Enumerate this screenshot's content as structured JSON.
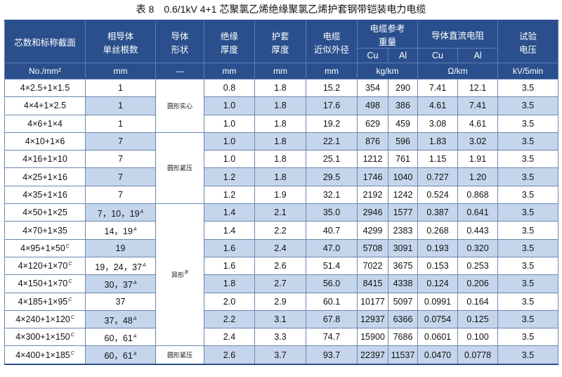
{
  "title": "表 8　0.6/1kV 4+1 芯聚氯乙烯绝缘聚氯乙烯护套钢带铠装电力电缆",
  "headers": {
    "spec": "芯数和标称截面",
    "strands": [
      "相导体",
      "单丝根数"
    ],
    "shape": [
      "导体",
      "形状"
    ],
    "insulation": [
      "绝缘",
      "厚度"
    ],
    "sheath": [
      "护套",
      "厚度"
    ],
    "diameter": [
      "电缆",
      "近似外径"
    ],
    "weight": [
      "电缆参考",
      "重量"
    ],
    "resistance": "导体直流电阻",
    "voltage": [
      "试验",
      "电压"
    ],
    "cu": "Cu",
    "al": "Al"
  },
  "units": {
    "spec": "No./mm²",
    "strands": "mm",
    "shape": "—",
    "insulation": "mm",
    "sheath": "mm",
    "diameter": "mm",
    "weight": "kg/km",
    "resistance": "Ω/km",
    "voltage": "kV/5min"
  },
  "shape_groups": [
    {
      "label": "圆形实心",
      "rows": 3
    },
    {
      "label": "圆形紧压",
      "rows": 4
    },
    {
      "label": "异形",
      "sup": "B",
      "rows": 8
    },
    {
      "label": "圆形紧压",
      "rows": 1
    }
  ],
  "rows": [
    {
      "spec": "4×2.5+1×1.5",
      "spec_sup": "",
      "strands": "1",
      "strands_sup": "",
      "insulation": "0.8",
      "sheath": "1.8",
      "diameter": "15.2",
      "w_cu": "354",
      "w_al": "290",
      "r_cu": "7.41",
      "r_al": "12.1",
      "voltage": "3.5"
    },
    {
      "spec": "4×4+1×2.5",
      "spec_sup": "",
      "strands": "1",
      "strands_sup": "",
      "insulation": "1.0",
      "sheath": "1.8",
      "diameter": "17.6",
      "w_cu": "498",
      "w_al": "386",
      "r_cu": "4.61",
      "r_al": "7.41",
      "voltage": "3.5"
    },
    {
      "spec": "4×6+1×4",
      "spec_sup": "",
      "strands": "1",
      "strands_sup": "",
      "insulation": "1.0",
      "sheath": "1.8",
      "diameter": "19.2",
      "w_cu": "629",
      "w_al": "459",
      "r_cu": "3.08",
      "r_al": "4.61",
      "voltage": "3.5"
    },
    {
      "spec": "4×10+1×6",
      "spec_sup": "",
      "strands": "7",
      "strands_sup": "",
      "insulation": "1.0",
      "sheath": "1.8",
      "diameter": "22.1",
      "w_cu": "876",
      "w_al": "596",
      "r_cu": "1.83",
      "r_al": "3.02",
      "voltage": "3.5"
    },
    {
      "spec": "4×16+1×10",
      "spec_sup": "",
      "strands": "7",
      "strands_sup": "",
      "insulation": "1.0",
      "sheath": "1.8",
      "diameter": "25.1",
      "w_cu": "1212",
      "w_al": "761",
      "r_cu": "1.15",
      "r_al": "1.91",
      "voltage": "3.5"
    },
    {
      "spec": "4×25+1×16",
      "spec_sup": "",
      "strands": "7",
      "strands_sup": "",
      "insulation": "1.2",
      "sheath": "1.8",
      "diameter": "29.5",
      "w_cu": "1746",
      "w_al": "1040",
      "r_cu": "0.727",
      "r_al": "1.20",
      "voltage": "3.5"
    },
    {
      "spec": "4×35+1×16",
      "spec_sup": "",
      "strands": "7",
      "strands_sup": "",
      "insulation": "1.2",
      "sheath": "1.9",
      "diameter": "32.1",
      "w_cu": "2192",
      "w_al": "1242",
      "r_cu": "0.524",
      "r_al": "0.868",
      "voltage": "3.5"
    },
    {
      "spec": "4×50+1×25",
      "spec_sup": "",
      "strands": "7，10，19",
      "strands_sup": "A",
      "insulation": "1.4",
      "sheath": "2.1",
      "diameter": "35.0",
      "w_cu": "2946",
      "w_al": "1577",
      "r_cu": "0.387",
      "r_al": "0.641",
      "voltage": "3.5"
    },
    {
      "spec": "4×70+1×35",
      "spec_sup": "",
      "strands": "14，19",
      "strands_sup": "A",
      "insulation": "1.4",
      "sheath": "2.2",
      "diameter": "40.7",
      "w_cu": "4299",
      "w_al": "2383",
      "r_cu": "0.268",
      "r_al": "0.443",
      "voltage": "3.5"
    },
    {
      "spec": "4×95+1×50",
      "spec_sup": "C",
      "strands": "19",
      "strands_sup": "",
      "insulation": "1.6",
      "sheath": "2.4",
      "diameter": "47.0",
      "w_cu": "5708",
      "w_al": "3091",
      "r_cu": "0.193",
      "r_al": "0.320",
      "voltage": "3.5"
    },
    {
      "spec": "4×120+1×70",
      "spec_sup": "C",
      "strands": "19，24，37",
      "strands_sup": "A",
      "insulation": "1.6",
      "sheath": "2.6",
      "diameter": "51.4",
      "w_cu": "7022",
      "w_al": "3675",
      "r_cu": "0.153",
      "r_al": "0.253",
      "voltage": "3.5"
    },
    {
      "spec": "4×150+1×70",
      "spec_sup": "C",
      "strands": "30，37",
      "strands_sup": "A",
      "insulation": "1.8",
      "sheath": "2.7",
      "diameter": "56.0",
      "w_cu": "8415",
      "w_al": "4338",
      "r_cu": "0.124",
      "r_al": "0.206",
      "voltage": "3.5"
    },
    {
      "spec": "4×185+1×95",
      "spec_sup": "C",
      "strands": "37",
      "strands_sup": "",
      "insulation": "2.0",
      "sheath": "2.9",
      "diameter": "60.1",
      "w_cu": "10177",
      "w_al": "5097",
      "r_cu": "0.0991",
      "r_al": "0.164",
      "voltage": "3.5"
    },
    {
      "spec": "4×240+1×120",
      "spec_sup": "C",
      "strands": "37，48",
      "strands_sup": "A",
      "insulation": "2.2",
      "sheath": "3.1",
      "diameter": "67.8",
      "w_cu": "12937",
      "w_al": "6366",
      "r_cu": "0.0754",
      "r_al": "0.125",
      "voltage": "3.5"
    },
    {
      "spec": "4×300+1×150",
      "spec_sup": "C",
      "strands": "60，61",
      "strands_sup": "A",
      "insulation": "2.4",
      "sheath": "3.3",
      "diameter": "74.7",
      "w_cu": "15900",
      "w_al": "7686",
      "r_cu": "0.0601",
      "r_al": "0.100",
      "voltage": "3.5"
    },
    {
      "spec": "4×400+1×185",
      "spec_sup": "C",
      "strands": "60，61",
      "strands_sup": "A",
      "insulation": "2.6",
      "sheath": "3.7",
      "diameter": "93.7",
      "w_cu": "22397",
      "w_al": "11537",
      "r_cu": "0.0470",
      "r_al": "0.0778",
      "voltage": "3.5"
    }
  ]
}
